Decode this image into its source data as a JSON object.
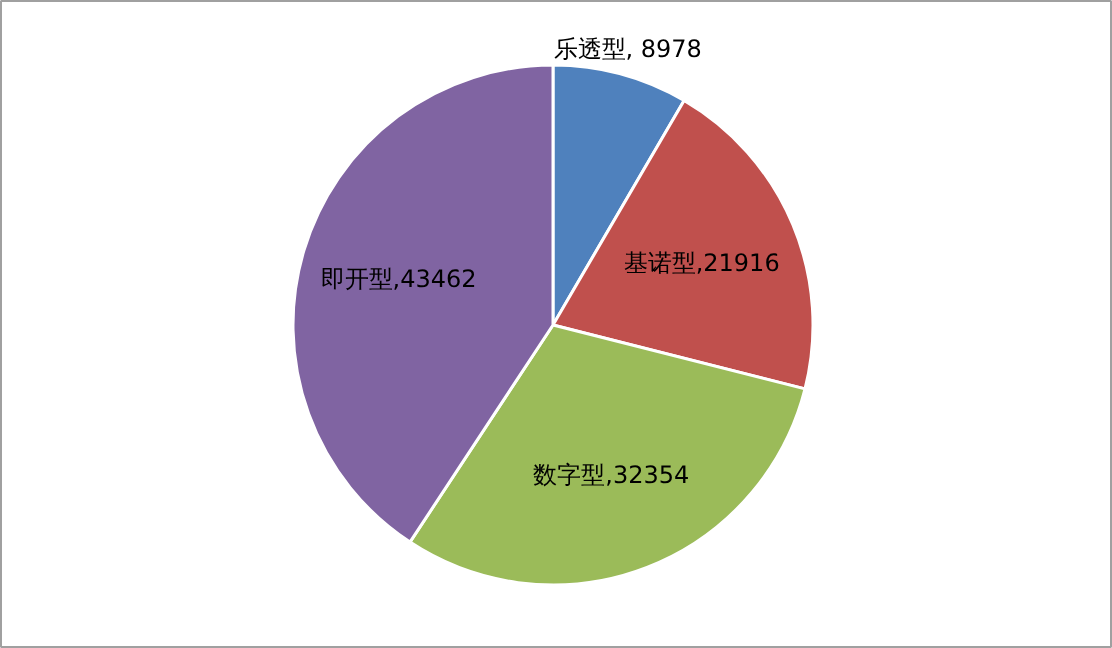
{
  "chart_data": {
    "type": "pie",
    "categories": [
      "乐透型",
      "基诺型",
      "数字型",
      "即开型"
    ],
    "values": [
      8978,
      21916,
      32354,
      43462
    ],
    "colors": [
      "#4f81bd",
      "#c0504d",
      "#9bbb59",
      "#8064a2"
    ],
    "value_labels": [
      " 8978",
      "21916",
      "32354",
      "43462"
    ],
    "legend": false
  }
}
